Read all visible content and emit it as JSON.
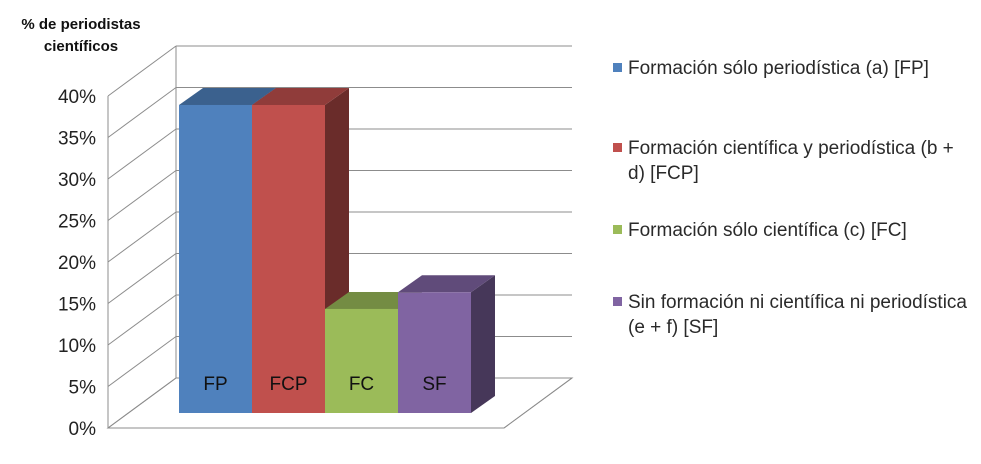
{
  "chart_data": {
    "type": "bar",
    "ylabel": "% de periodistas científicos",
    "ylim": [
      0,
      40
    ],
    "yticks": [
      "0%",
      "5%",
      "10%",
      "15%",
      "20%",
      "25%",
      "30%",
      "35%",
      "40%"
    ],
    "grid": true,
    "legend_position": "right",
    "categories": [
      "FP",
      "FCP",
      "FC",
      "SF"
    ],
    "values": [
      37,
      37,
      12.5,
      14.5
    ],
    "colors": [
      "#4f81bd",
      "#c0504d",
      "#9bbb59",
      "#8064a2"
    ],
    "legend": [
      "Formación sólo periodística (a) [FP]",
      "Formación científica y periodística (b + d) [FCP]",
      "Formación sólo científica (c) [FC]",
      "Sin formación ni científica ni periodística (e + f) [SF]"
    ]
  }
}
